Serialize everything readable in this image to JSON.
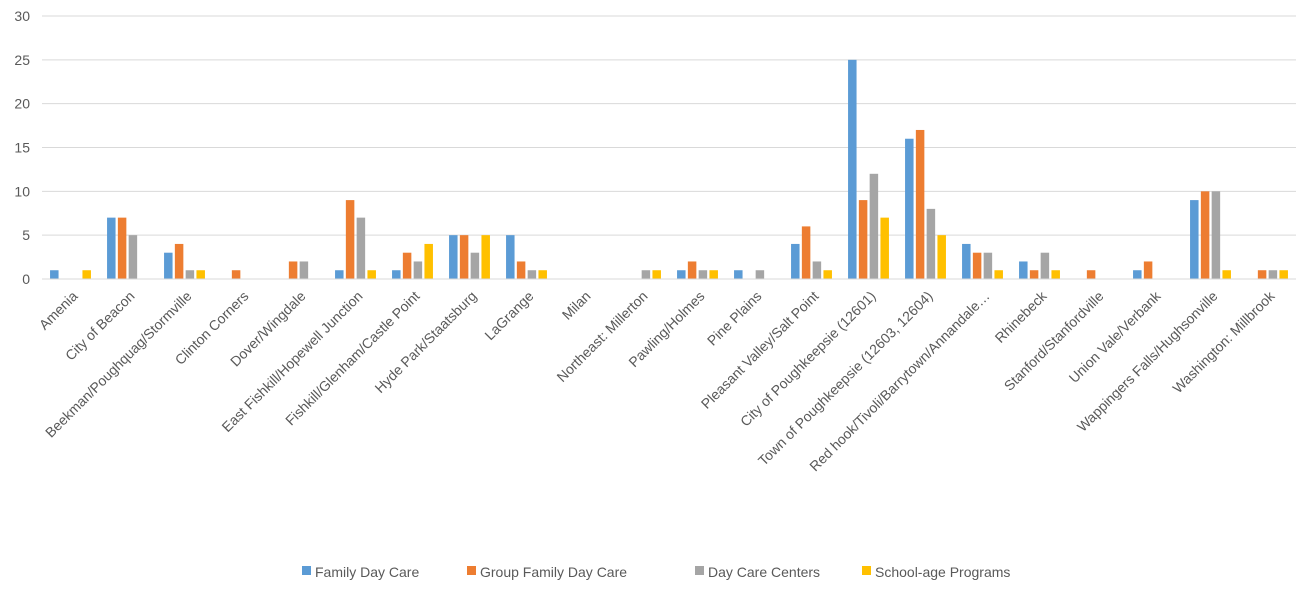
{
  "chart_data": {
    "type": "bar",
    "title": "",
    "xlabel": "",
    "ylabel": "",
    "ylim": [
      0,
      30
    ],
    "yticks": [
      "0",
      "5",
      "10",
      "15",
      "20",
      "25",
      "30"
    ],
    "grid": true,
    "legend_position": "bottom",
    "categories": [
      "Amenia",
      "City of Beacon",
      "Beekman/Poughquag/Stormville",
      "Clinton Corners",
      "Dover/Wingdale",
      "East Fishkill/Hopewell Junction",
      "Fishkill/Glenham/Castle Point",
      "Hyde Park/Staatsburg",
      "LaGrange",
      "Milan",
      "Northeast: Millerton",
      "Pawling/Holmes",
      "Pine Plains",
      "Pleasant Valley/Salt Point",
      "City of Poughkeepsie (12601)",
      "Town of Poughkeepsie (12603, 12604)",
      "Red hook/Tivoli/Barrytown/Annandale…",
      "Rhinebeck",
      "Stanford/Stanfordville",
      "Union Vale/Verbank",
      "Wappingers Falls/Hughsonville",
      "Washington: Millbrook"
    ],
    "series": [
      {
        "name": "Family Day Care",
        "color": "#5B9BD5",
        "values": [
          1,
          7,
          3,
          0,
          0,
          1,
          1,
          5,
          5,
          0,
          0,
          1,
          1,
          4,
          25,
          16,
          4,
          2,
          0,
          1,
          9,
          0
        ]
      },
      {
        "name": "Group Family Day Care",
        "color": "#ED7D31",
        "values": [
          0,
          7,
          4,
          1,
          2,
          9,
          3,
          5,
          2,
          0,
          0,
          2,
          0,
          6,
          9,
          17,
          3,
          1,
          1,
          2,
          10,
          1
        ]
      },
      {
        "name": "Day Care Centers",
        "color": "#A5A5A5",
        "values": [
          0,
          5,
          1,
          0,
          2,
          7,
          2,
          3,
          1,
          0,
          1,
          1,
          1,
          2,
          12,
          8,
          3,
          3,
          0,
          0,
          10,
          1
        ]
      },
      {
        "name": "School-age Programs",
        "color": "#FFC000",
        "values": [
          1,
          0,
          1,
          0,
          0,
          1,
          4,
          5,
          1,
          0,
          1,
          1,
          0,
          1,
          7,
          5,
          1,
          1,
          0,
          0,
          1,
          1
        ]
      }
    ],
    "colors": {
      "gridline": "#D9D9D9",
      "axis_text": "#595959"
    }
  }
}
